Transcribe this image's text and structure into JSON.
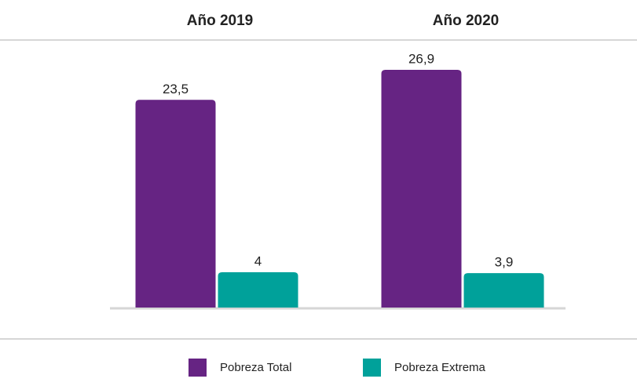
{
  "chart_data": {
    "type": "bar",
    "categories": [
      "Año 2019",
      "Año 2020"
    ],
    "series": [
      {
        "name": "Pobreza Total",
        "color": "#662483",
        "values": [
          23.5,
          26.9
        ],
        "value_labels": [
          "23,5",
          "26,9"
        ]
      },
      {
        "name": "Pobreza Extrema",
        "color": "#00a19a",
        "values": [
          4,
          3.9
        ],
        "value_labels": [
          "4",
          "3,9"
        ]
      }
    ]
  }
}
